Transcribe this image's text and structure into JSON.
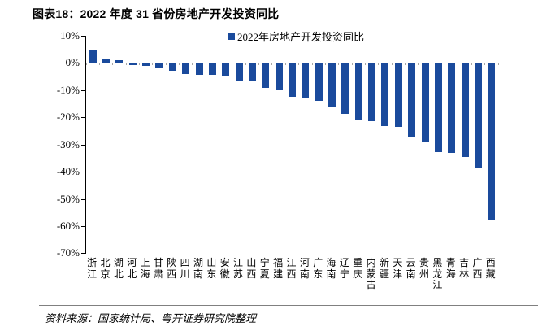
{
  "header": {
    "title": "图表18：2022 年度 31 省份房地产开发投资同比"
  },
  "legend": {
    "label": "2022年房地产开发投资同比",
    "swatch_color": "#1a4a9c"
  },
  "footer": {
    "source": "资料来源：国家统计局、粤开证券研究院整理"
  },
  "colors": {
    "bar": "#1a4a9c",
    "axis": "#000000",
    "zero_line": "#bfbfbf",
    "rule_gray": "#a6a6a6"
  },
  "chart_data": {
    "type": "bar",
    "title": "2022 年度 31 省份房地产开发投资同比",
    "legend": [
      "2022年房地产开发投资同比"
    ],
    "legend_position": "top",
    "grid": false,
    "xlabel": "",
    "ylabel": "",
    "ylim": [
      -70,
      10
    ],
    "yticks": [
      10,
      0,
      -10,
      -20,
      -30,
      -40,
      -50,
      -60,
      -70
    ],
    "ytick_format": "percent",
    "categories": [
      "浙江",
      "北京",
      "湖北",
      "河北",
      "上海",
      "甘肃",
      "陕西",
      "四川",
      "湖南",
      "山东",
      "安徽",
      "江苏",
      "山西",
      "宁夏",
      "福建",
      "江西",
      "河南",
      "广东",
      "海南",
      "辽宁",
      "重庆",
      "内蒙古",
      "新疆",
      "天津",
      "云南",
      "贵州",
      "黑龙江",
      "青海",
      "吉林",
      "广西",
      "西藏"
    ],
    "values": [
      4.5,
      1.4,
      1.1,
      -0.9,
      -1.0,
      -2.0,
      -3.0,
      -4.2,
      -4.3,
      -4.5,
      -4.8,
      -6.7,
      -6.9,
      -9.2,
      -10.0,
      -12.3,
      -13.0,
      -14.0,
      -16.0,
      -18.8,
      -21.0,
      -21.3,
      -23.1,
      -23.6,
      -27.2,
      -29.0,
      -32.9,
      -33.2,
      -34.5,
      -38.5,
      -57.7
    ],
    "unit": "%"
  }
}
